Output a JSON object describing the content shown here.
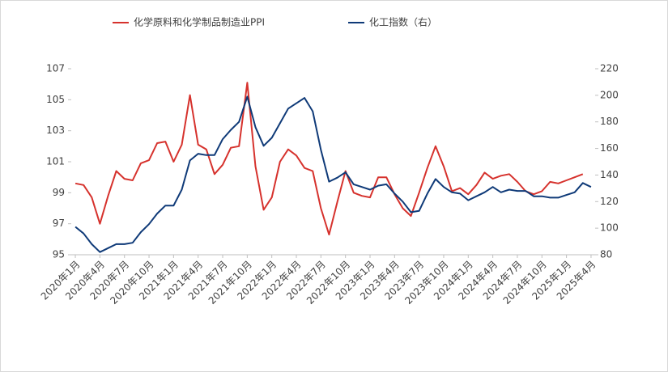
{
  "chart_data": {
    "type": "line",
    "categories": [
      "2020年1月",
      null,
      null,
      "2020年4月",
      null,
      null,
      "2020年7月",
      null,
      null,
      "2020年10月",
      null,
      null,
      "2021年1月",
      null,
      null,
      "2021年4月",
      null,
      null,
      "2021年7月",
      null,
      null,
      "2021年10月",
      null,
      null,
      "2022年1月",
      null,
      null,
      "2022年4月",
      null,
      null,
      "2022年7月",
      null,
      null,
      "2022年10月",
      null,
      null,
      "2023年1月",
      null,
      null,
      "2023年4月",
      null,
      null,
      "2023年7月",
      null,
      null,
      "2023年10月",
      null,
      null,
      "2024年1月",
      null,
      null,
      "2024年4月",
      null,
      null,
      "2024年7月",
      null,
      null,
      "2024年10月",
      null,
      null,
      "2025年1月",
      null,
      null,
      "2025年4月"
    ],
    "series": [
      {
        "name": "化学原料和化学制品制造业PPI",
        "color": "#d6322d",
        "axis": "y",
        "values": [
          99.6,
          99.5,
          98.7,
          97.0,
          98.8,
          100.4,
          99.9,
          99.8,
          100.9,
          101.1,
          102.2,
          102.3,
          101.0,
          102.1,
          105.3,
          102.1,
          101.8,
          100.2,
          100.8,
          101.9,
          102.0,
          106.1,
          100.7,
          97.9,
          98.7,
          101.0,
          101.8,
          101.4,
          100.6,
          100.4,
          98.0,
          96.3,
          98.4,
          100.4,
          99.0,
          98.8,
          98.7,
          100.0,
          100.0,
          98.9,
          98.0,
          97.5,
          99.0,
          100.6,
          102.0,
          100.7,
          99.1,
          99.3,
          98.9,
          99.5,
          100.3,
          99.9,
          100.1,
          100.2,
          99.7,
          99.1,
          98.9,
          99.1,
          99.7,
          99.6,
          99.8,
          100.0,
          100.2,
          null
        ]
      },
      {
        "name": "化工指数（右）",
        "color": "#0f3a78",
        "axis": "y2",
        "values": [
          101,
          96,
          88,
          82,
          85,
          88,
          88,
          89,
          97,
          103,
          111,
          117,
          117,
          129,
          151,
          156,
          155,
          155,
          167,
          174,
          180,
          199,
          176,
          162,
          168,
          179,
          190,
          194,
          198,
          188,
          159,
          135,
          138,
          142,
          133,
          131,
          129,
          132,
          133,
          126,
          120,
          112,
          113,
          126,
          137,
          131,
          127,
          126,
          121,
          124,
          127,
          131,
          127,
          129,
          128,
          128,
          124,
          124,
          123,
          123,
          125,
          127,
          134,
          131
        ]
      }
    ],
    "ylim": [
      95,
      107
    ],
    "yticks": [
      95,
      97,
      99,
      101,
      103,
      105,
      107
    ],
    "y2lim": [
      80,
      220
    ],
    "y2ticks": [
      80,
      100,
      120,
      140,
      160,
      180,
      200,
      220
    ]
  }
}
